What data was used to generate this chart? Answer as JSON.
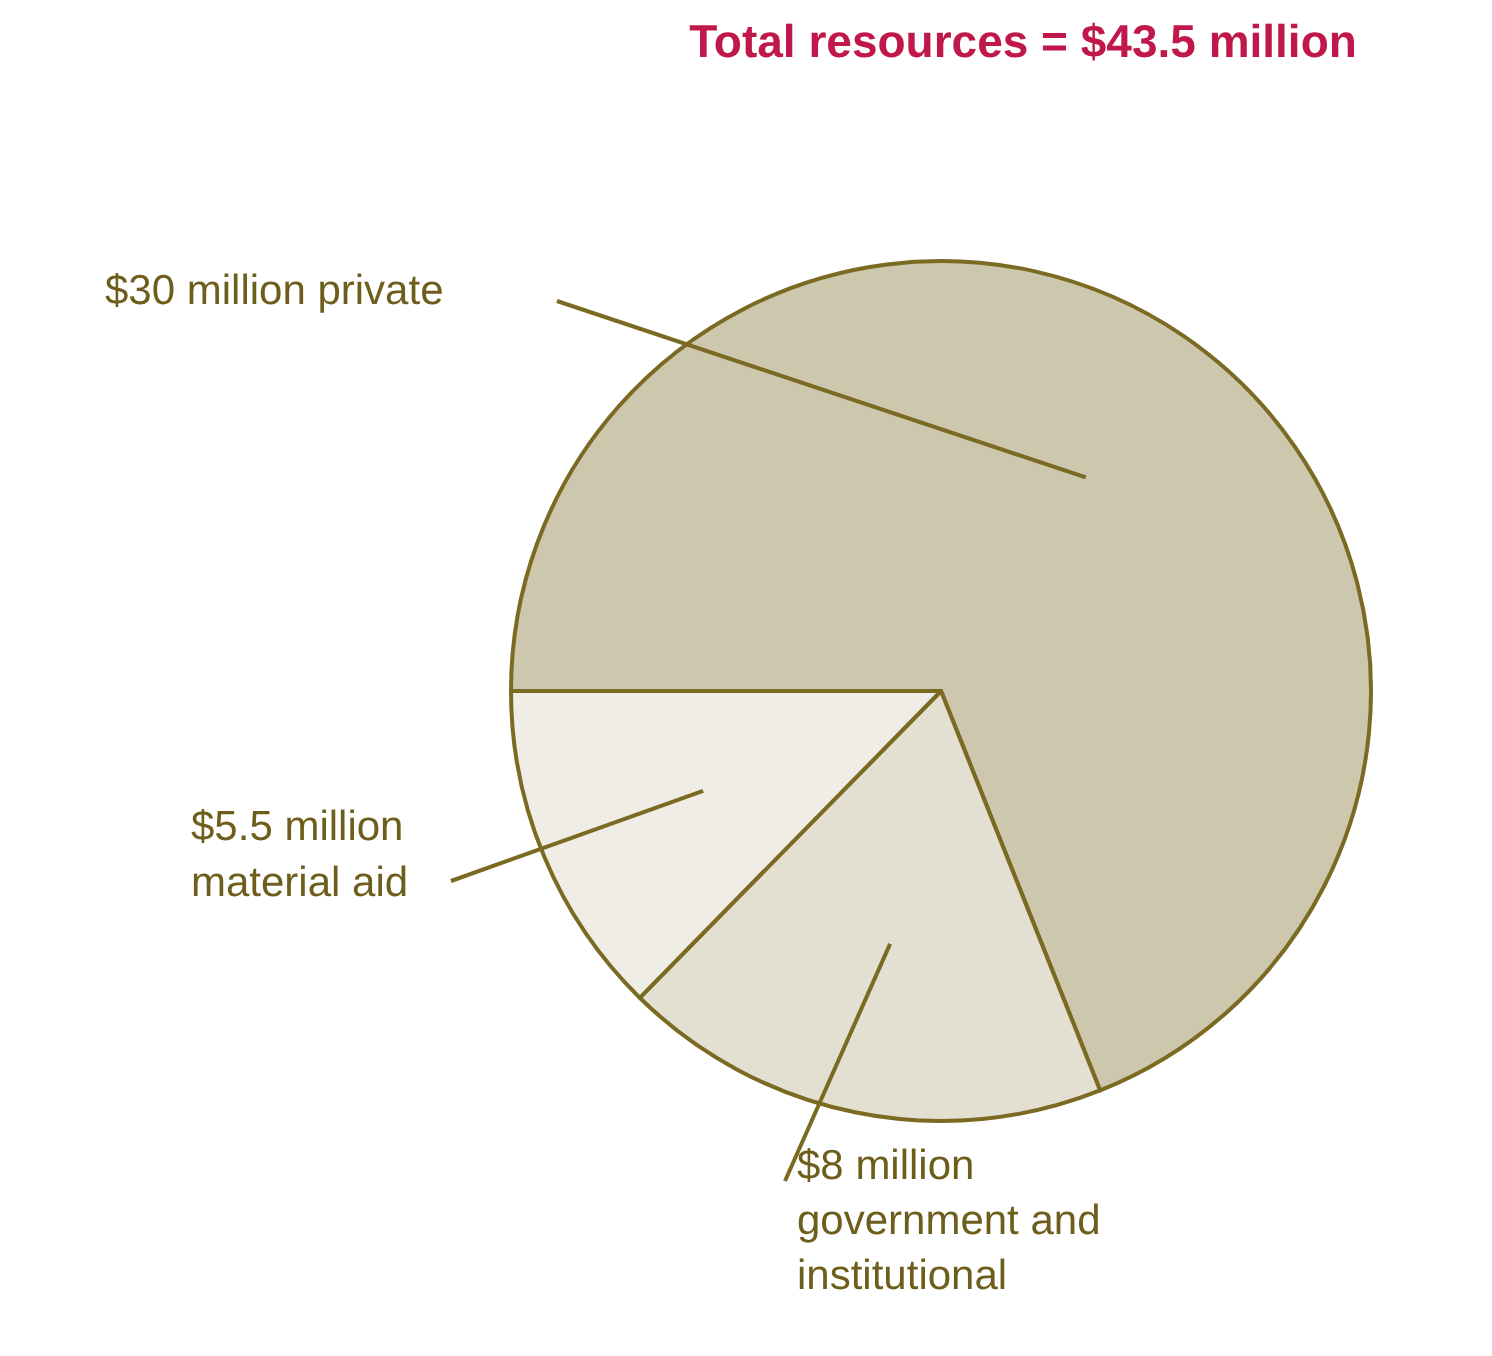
{
  "chart_data": {
    "type": "pie",
    "title": "Total resources = $43.5 million",
    "categories": [
      "$30 million private",
      "$8 million\ngovernment and\ninstitutional",
      "$5.5 million\nmaterial aid"
    ],
    "values": [
      30,
      8,
      5.5
    ],
    "colors": [
      "#cdc7ae",
      "#e3e0d2",
      "#efede6"
    ]
  }
}
